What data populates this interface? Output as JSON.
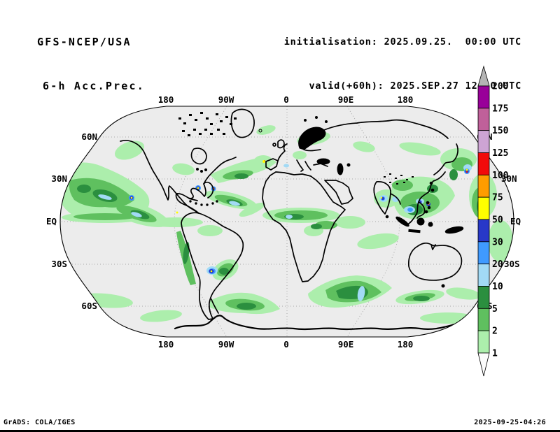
{
  "header": {
    "model": "GFS-NCEP/USA",
    "product": "6-h Acc.Prec.",
    "init_label": "initialisation: 2025.09.25.  00:00 UTC",
    "valid_label": "valid(+60h): 2025.SEP.27 12:00 UTC"
  },
  "map": {
    "projection": "robinson",
    "lon_labels": [
      "180",
      "90W",
      "0",
      "90E",
      "180"
    ],
    "lat_labels": [
      "60N",
      "30N",
      "EQ",
      "30S",
      "60S"
    ],
    "background_color": "#ececec",
    "coastline_color": "#000000",
    "grid_color": "#a8a8a8"
  },
  "colorbar": {
    "levels": [
      "200",
      "175",
      "150",
      "125",
      "100",
      "75",
      "50",
      "30",
      "20",
      "10",
      "5",
      "2",
      "1"
    ],
    "segment_colors": [
      "#990099",
      "#c0609a",
      "#cda4d4",
      "#f20a0a",
      "#ff9c00",
      "#ffff00",
      "#2838c8",
      "#3f9aff",
      "#a2daf5",
      "#2b8f3f",
      "#5fc05f",
      "#aceeac"
    ],
    "above_max_color": "#b4b4b4",
    "below_min_color": "#fbfbfb"
  },
  "footer": {
    "left": "GrADS: COLA/IGES",
    "right": "2025-09-25-04:26"
  }
}
